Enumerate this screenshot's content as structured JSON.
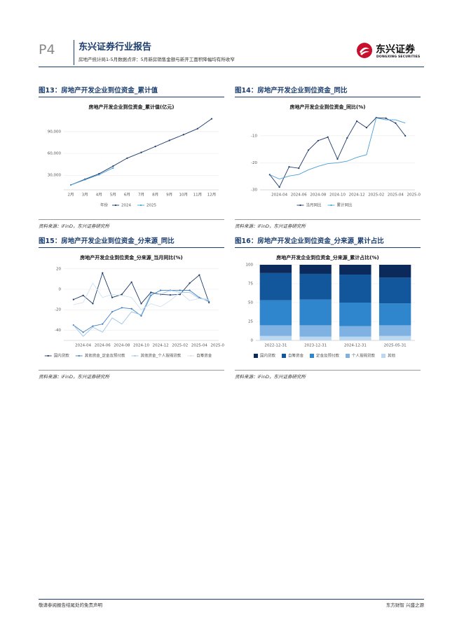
{
  "header": {
    "page": "P4",
    "report_type": "东兴证券行业报告",
    "subtitle": "房地产统计局1-5月数据点评：5月新房销售金额与新开工面积降幅均有所收窄",
    "logo_cn": "东兴证券",
    "logo_en": "DONGXING SECURITIES"
  },
  "figures": [
    {
      "label": "图13：房地产开发企业到位资金_累计值",
      "source": "资料来源：iFinD，东兴证券研究所"
    },
    {
      "label": "图14：房地产开发企业到位资金_同比",
      "source": "资料来源：iFinD，东兴证券研究所"
    },
    {
      "label": "图15：房地产开发企业到位资金_分来源_同比",
      "source": "资料来源：iFinD，东兴证券研究所"
    },
    {
      "label": "图16：房地产开发企业到位资金_分来源_累计占比",
      "source": "资料来源：iFinD，东兴证券研究所"
    }
  ],
  "footer": {
    "left": "敬请参阅报告结尾处的免责声明",
    "right": "东方财智 兴盛之源"
  },
  "chart_data": [
    {
      "type": "line",
      "title": "房地产开发企业到位资金_累计值(亿元)",
      "categories": [
        "2月",
        "3月",
        "4月",
        "5月",
        "6月",
        "7月",
        "8月",
        "9月",
        "10月",
        "11月",
        "12月"
      ],
      "legend_title": "年份",
      "series": [
        {
          "name": "2024",
          "color": "#1b3a6b",
          "markers": true,
          "values": [
            16701,
            24544,
            32000,
            42571,
            53530,
            61374,
            69567,
            77945,
            85809,
            94074,
            107661
          ]
        },
        {
          "name": "2025",
          "color": "#4a9fd8",
          "markers": true,
          "values": [
            16693,
            23804,
            30690,
            40005,
            null,
            null,
            null,
            null,
            null,
            null,
            null
          ]
        }
      ],
      "ylim": [
        10000,
        114000
      ],
      "yticks": [
        {
          "value": 30000,
          "label": "30,000"
        },
        {
          "value": 60000,
          "label": "60,000"
        },
        {
          "value": 90000,
          "label": "90,000"
        }
      ],
      "grid": true
    },
    {
      "type": "line",
      "title": "房地产开发企业到位资金_同比(%)",
      "x": [
        "2024-03",
        "2024-04",
        "2024-05",
        "2024-06",
        "2024-07",
        "2024-08",
        "2024-09",
        "2024-10",
        "2024-11",
        "2024-12",
        "2025-01",
        "2025-02",
        "2025-03",
        "2025-04",
        "2025-05"
      ],
      "xlim": [
        "2024-02",
        "2025-06"
      ],
      "xticks": [
        "2024-04",
        "2024-06",
        "2024-08",
        "2024-10",
        "2024-12",
        "2025-02",
        "2025-04",
        "2025-06"
      ],
      "series": [
        {
          "name": "当月同比",
          "color": "#1b3a6b",
          "markers": true,
          "values": [
            -24.4,
            -29.0,
            -21.5,
            -22.0,
            -15.3,
            -11.8,
            -10.5,
            -18.6,
            -10.8,
            -4.6,
            -7.0,
            -3.3,
            -3.5,
            -5.3,
            -10.0
          ]
        },
        {
          "name": "累计同比",
          "color": "#4a9fd8",
          "markers": false,
          "values": [
            -24.4,
            -26.0,
            -24.9,
            -24.3,
            -22.6,
            -21.3,
            -20.3,
            -20.0,
            -19.4,
            -18.0,
            -17.0,
            -3.4,
            -4.1,
            -4.1,
            -5.3
          ]
        }
      ],
      "ylim": [
        -30,
        -2
      ],
      "yticks": [
        -10,
        -20,
        -30
      ],
      "grid": true
    },
    {
      "type": "line",
      "title": "房地产开发企业到位资金_分来源_当月同比(%)",
      "x": [
        "2024-03",
        "2024-04",
        "2024-05",
        "2024-06",
        "2024-07",
        "2024-08",
        "2024-09",
        "2024-10",
        "2024-11",
        "2024-12",
        "2025-01",
        "2025-02",
        "2025-03",
        "2025-04",
        "2025-05"
      ],
      "xlim": [
        "2024-02",
        "2025-06"
      ],
      "xticks": [
        "2024-04",
        "2024-06",
        "2024-08",
        "2024-10",
        "2024-12",
        "2025-02",
        "2025-04",
        "2025-06"
      ],
      "series": [
        {
          "name": "国内贷款",
          "color": "#1b3a6b",
          "markers": true,
          "values": [
            -10,
            -6,
            -14,
            16,
            -8,
            -5,
            7,
            -14,
            -3,
            -5,
            -5.5,
            -5,
            6,
            14,
            -13
          ]
        },
        {
          "name": "其他资金_定金及预付款",
          "color": "#3d7fc1",
          "markers": true,
          "values": [
            -35,
            -42,
            -36,
            -34,
            -22,
            -18,
            -19,
            -26,
            -6,
            -1,
            -1,
            -1,
            -1,
            -8,
            -12
          ]
        },
        {
          "name": "其他资金_个人按揭贷款",
          "color": "#9cc4e8",
          "markers": false,
          "values": [
            -35,
            -46,
            -37,
            -42,
            -28,
            -34,
            -22,
            -25,
            -4,
            -5,
            -1,
            -3,
            -3,
            -9,
            -10
          ]
        },
        {
          "name": "自筹资金",
          "color": "#d0e2f2",
          "markers": false,
          "values": [
            -15,
            -13,
            6,
            -8,
            -5,
            -6,
            -8,
            -20,
            -14,
            -17,
            -11,
            -3,
            -11,
            -9,
            -11
          ]
        }
      ],
      "ylim": [
        -50,
        24
      ],
      "yticks": [
        20,
        0,
        -20,
        -40
      ],
      "grid": true
    },
    {
      "type": "bar",
      "title": "房地产开发企业到位资金_分来源_累计占比(%)",
      "categories": [
        "2022-12-31",
        "2023-12-31",
        "2024-12-31",
        "2025-05-31"
      ],
      "series": [
        {
          "name": "国内贷款",
          "color": "#0b2a5b",
          "values": [
            11,
            12,
            13,
            17
          ]
        },
        {
          "name": "自筹资金",
          "color": "#12569c",
          "values": [
            36,
            34,
            37,
            34
          ]
        },
        {
          "name": "定金及预付款",
          "color": "#2f86cd",
          "values": [
            33,
            34,
            31,
            29
          ]
        },
        {
          "name": "个人按揭贷款",
          "color": "#7fb2e3",
          "values": [
            14,
            15,
            14,
            14
          ]
        },
        {
          "name": "其他",
          "color": "#bcd7f0",
          "values": [
            6,
            5,
            5,
            6
          ]
        }
      ],
      "ylim": [
        0,
        100
      ],
      "yticks": [
        0,
        25,
        50,
        75,
        100
      ],
      "grid": true
    }
  ]
}
